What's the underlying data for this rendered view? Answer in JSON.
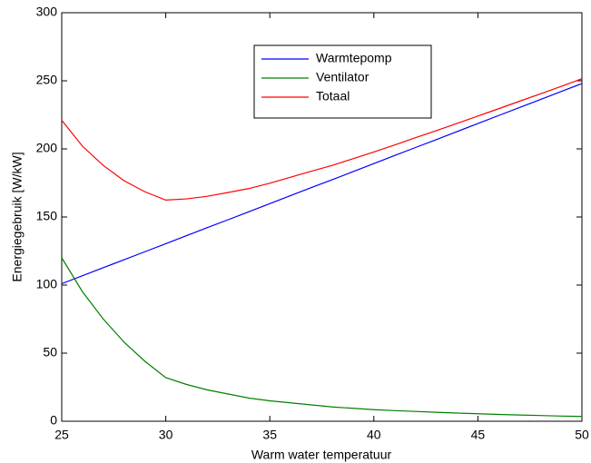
{
  "chart_data": {
    "type": "line",
    "xlabel": "Warm water temperatuur",
    "ylabel": "Energiegebruik [W/kW]",
    "x": [
      25,
      26,
      27,
      28,
      29,
      30,
      31,
      32,
      33,
      34,
      35,
      36,
      37,
      38,
      39,
      40,
      41,
      42,
      43,
      44,
      45,
      46,
      47,
      48,
      49,
      50
    ],
    "series": [
      {
        "name": "Warmtepomp",
        "color": "#0000ff",
        "values": [
          101,
          106.9,
          112.8,
          118.6,
          124.5,
          130.4,
          136.3,
          142.2,
          148,
          153.9,
          159.8,
          165.7,
          171.6,
          177.4,
          183.3,
          189.2,
          195.1,
          201,
          206.8,
          212.7,
          218.6,
          224.5,
          230.4,
          236.2,
          242.1,
          248
        ]
      },
      {
        "name": "Ventilator",
        "color": "#008000",
        "values": [
          120,
          95,
          75,
          58,
          44,
          32,
          27,
          23,
          20,
          17,
          15,
          13.5,
          12,
          10.5,
          9.5,
          8.5,
          7.8,
          7.2,
          6.6,
          6,
          5.5,
          5,
          4.6,
          4.2,
          3.8,
          3.5
        ]
      },
      {
        "name": "Totaal",
        "color": "#ff0000",
        "values": [
          221,
          201.9,
          187.8,
          176.6,
          168.5,
          162.4,
          163.3,
          165.2,
          168,
          170.9,
          174.8,
          179.2,
          183.6,
          187.9,
          192.8,
          197.7,
          202.9,
          208.2,
          213.4,
          218.7,
          224.1,
          229.5,
          235,
          240.4,
          245.9,
          251.5
        ]
      }
    ],
    "xlim": [
      25,
      50
    ],
    "xticks": [
      25,
      30,
      35,
      40,
      45,
      50
    ],
    "ylim": [
      0,
      300
    ],
    "yticks": [
      0,
      50,
      100,
      150,
      200,
      250,
      300
    ],
    "grid": false,
    "legend": "top-center"
  }
}
